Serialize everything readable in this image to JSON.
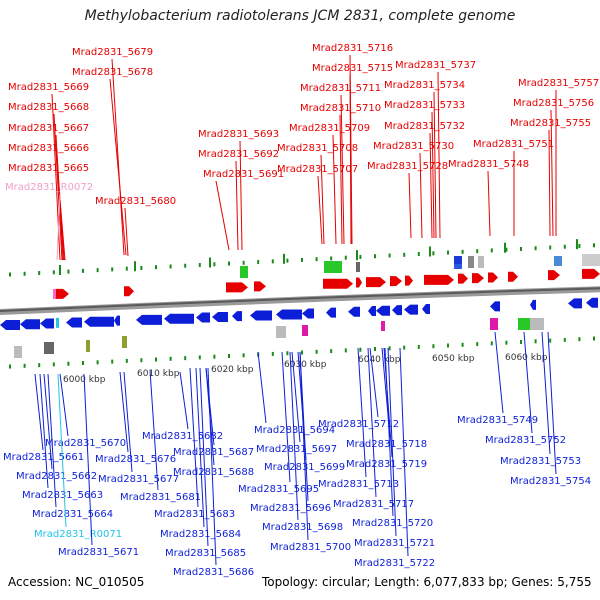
{
  "title": "Methylobacterium radiotolerans JCM 2831, complete genome",
  "footer": {
    "accession": "Accession: NC_010505",
    "summary": "Topology: circular; Length: 6,077,833 bp; Genes: 5,755"
  },
  "colors": {
    "forward": "#e60000",
    "reverse": "#0d1fd6",
    "rna_forward": "#f0a0c8",
    "rna_reverse": "#22c4e8",
    "axis": "#808080",
    "tick": "#1a8a1a"
  },
  "ruler": {
    "labels": [
      "6000 kbp",
      "6010 kbp",
      "6020 kbp",
      "6030 kbp",
      "6040 kbp",
      "6050 kbp",
      "6060 kbp"
    ]
  },
  "top_labels": [
    {
      "text": "Mrad2831_5679",
      "kind": "gene"
    },
    {
      "text": "Mrad2831_5678",
      "kind": "gene"
    },
    {
      "text": "Mrad2831_5669",
      "kind": "gene"
    },
    {
      "text": "Mrad2831_5668",
      "kind": "gene"
    },
    {
      "text": "Mrad2831_5667",
      "kind": "gene"
    },
    {
      "text": "Mrad2831_5666",
      "kind": "gene"
    },
    {
      "text": "Mrad2831_5665",
      "kind": "gene"
    },
    {
      "text": "Mrad2831_R0072",
      "kind": "rna"
    },
    {
      "text": "Mrad2831_5680",
      "kind": "gene"
    },
    {
      "text": "Mrad2831_5693",
      "kind": "gene"
    },
    {
      "text": "Mrad2831_5692",
      "kind": "gene"
    },
    {
      "text": "Mrad2831_5691",
      "kind": "gene"
    },
    {
      "text": "Mrad2831_5716",
      "kind": "gene"
    },
    {
      "text": "Mrad2831_5715",
      "kind": "gene"
    },
    {
      "text": "Mrad2831_5711",
      "kind": "gene"
    },
    {
      "text": "Mrad2831_5710",
      "kind": "gene"
    },
    {
      "text": "Mrad2831_5709",
      "kind": "gene"
    },
    {
      "text": "Mrad2831_5708",
      "kind": "gene"
    },
    {
      "text": "Mrad2831_5707",
      "kind": "gene"
    },
    {
      "text": "Mrad2831_5737",
      "kind": "gene"
    },
    {
      "text": "Mrad2831_5734",
      "kind": "gene"
    },
    {
      "text": "Mrad2831_5733",
      "kind": "gene"
    },
    {
      "text": "Mrad2831_5732",
      "kind": "gene"
    },
    {
      "text": "Mrad2831_5730",
      "kind": "gene"
    },
    {
      "text": "Mrad2831_5728",
      "kind": "gene"
    },
    {
      "text": "Mrad2831_5748",
      "kind": "gene"
    },
    {
      "text": "Mrad2831_5751",
      "kind": "gene"
    },
    {
      "text": "Mrad2831_5757",
      "kind": "gene"
    },
    {
      "text": "Mrad2831_5756",
      "kind": "gene"
    },
    {
      "text": "Mrad2831_5755",
      "kind": "gene"
    }
  ],
  "bottom_labels": [
    {
      "text": "Mrad2831_5670",
      "kind": "gene"
    },
    {
      "text": "Mrad2831_5661",
      "kind": "gene"
    },
    {
      "text": "Mrad2831_5662",
      "kind": "gene"
    },
    {
      "text": "Mrad2831_5663",
      "kind": "gene"
    },
    {
      "text": "Mrad2831_5664",
      "kind": "gene"
    },
    {
      "text": "Mrad2831_R0071",
      "kind": "rna"
    },
    {
      "text": "Mrad2831_5671",
      "kind": "gene"
    },
    {
      "text": "Mrad2831_5682",
      "kind": "gene"
    },
    {
      "text": "Mrad2831_5676",
      "kind": "gene"
    },
    {
      "text": "Mrad2831_5687",
      "kind": "gene"
    },
    {
      "text": "Mrad2831_5688",
      "kind": "gene"
    },
    {
      "text": "Mrad2831_5677",
      "kind": "gene"
    },
    {
      "text": "Mrad2831_5681",
      "kind": "gene"
    },
    {
      "text": "Mrad2831_5683",
      "kind": "gene"
    },
    {
      "text": "Mrad2831_5684",
      "kind": "gene"
    },
    {
      "text": "Mrad2831_5685",
      "kind": "gene"
    },
    {
      "text": "Mrad2831_5686",
      "kind": "gene"
    },
    {
      "text": "Mrad2831_5694",
      "kind": "gene"
    },
    {
      "text": "Mrad2831_5697",
      "kind": "gene"
    },
    {
      "text": "Mrad2831_5699",
      "kind": "gene"
    },
    {
      "text": "Mrad2831_5695",
      "kind": "gene"
    },
    {
      "text": "Mrad2831_5696",
      "kind": "gene"
    },
    {
      "text": "Mrad2831_5698",
      "kind": "gene"
    },
    {
      "text": "Mrad2831_5700",
      "kind": "gene"
    },
    {
      "text": "Mrad2831_5712",
      "kind": "gene"
    },
    {
      "text": "Mrad2831_5718",
      "kind": "gene"
    },
    {
      "text": "Mrad2831_5719",
      "kind": "gene"
    },
    {
      "text": "Mrad2831_5713",
      "kind": "gene"
    },
    {
      "text": "Mrad2831_5717",
      "kind": "gene"
    },
    {
      "text": "Mrad2831_5720",
      "kind": "gene"
    },
    {
      "text": "Mrad2831_5721",
      "kind": "gene"
    },
    {
      "text": "Mrad2831_5722",
      "kind": "gene"
    },
    {
      "text": "Mrad2831_5749",
      "kind": "gene"
    },
    {
      "text": "Mrad2831_5752",
      "kind": "gene"
    },
    {
      "text": "Mrad2831_5753",
      "kind": "gene"
    },
    {
      "text": "Mrad2831_5754",
      "kind": "gene"
    }
  ]
}
